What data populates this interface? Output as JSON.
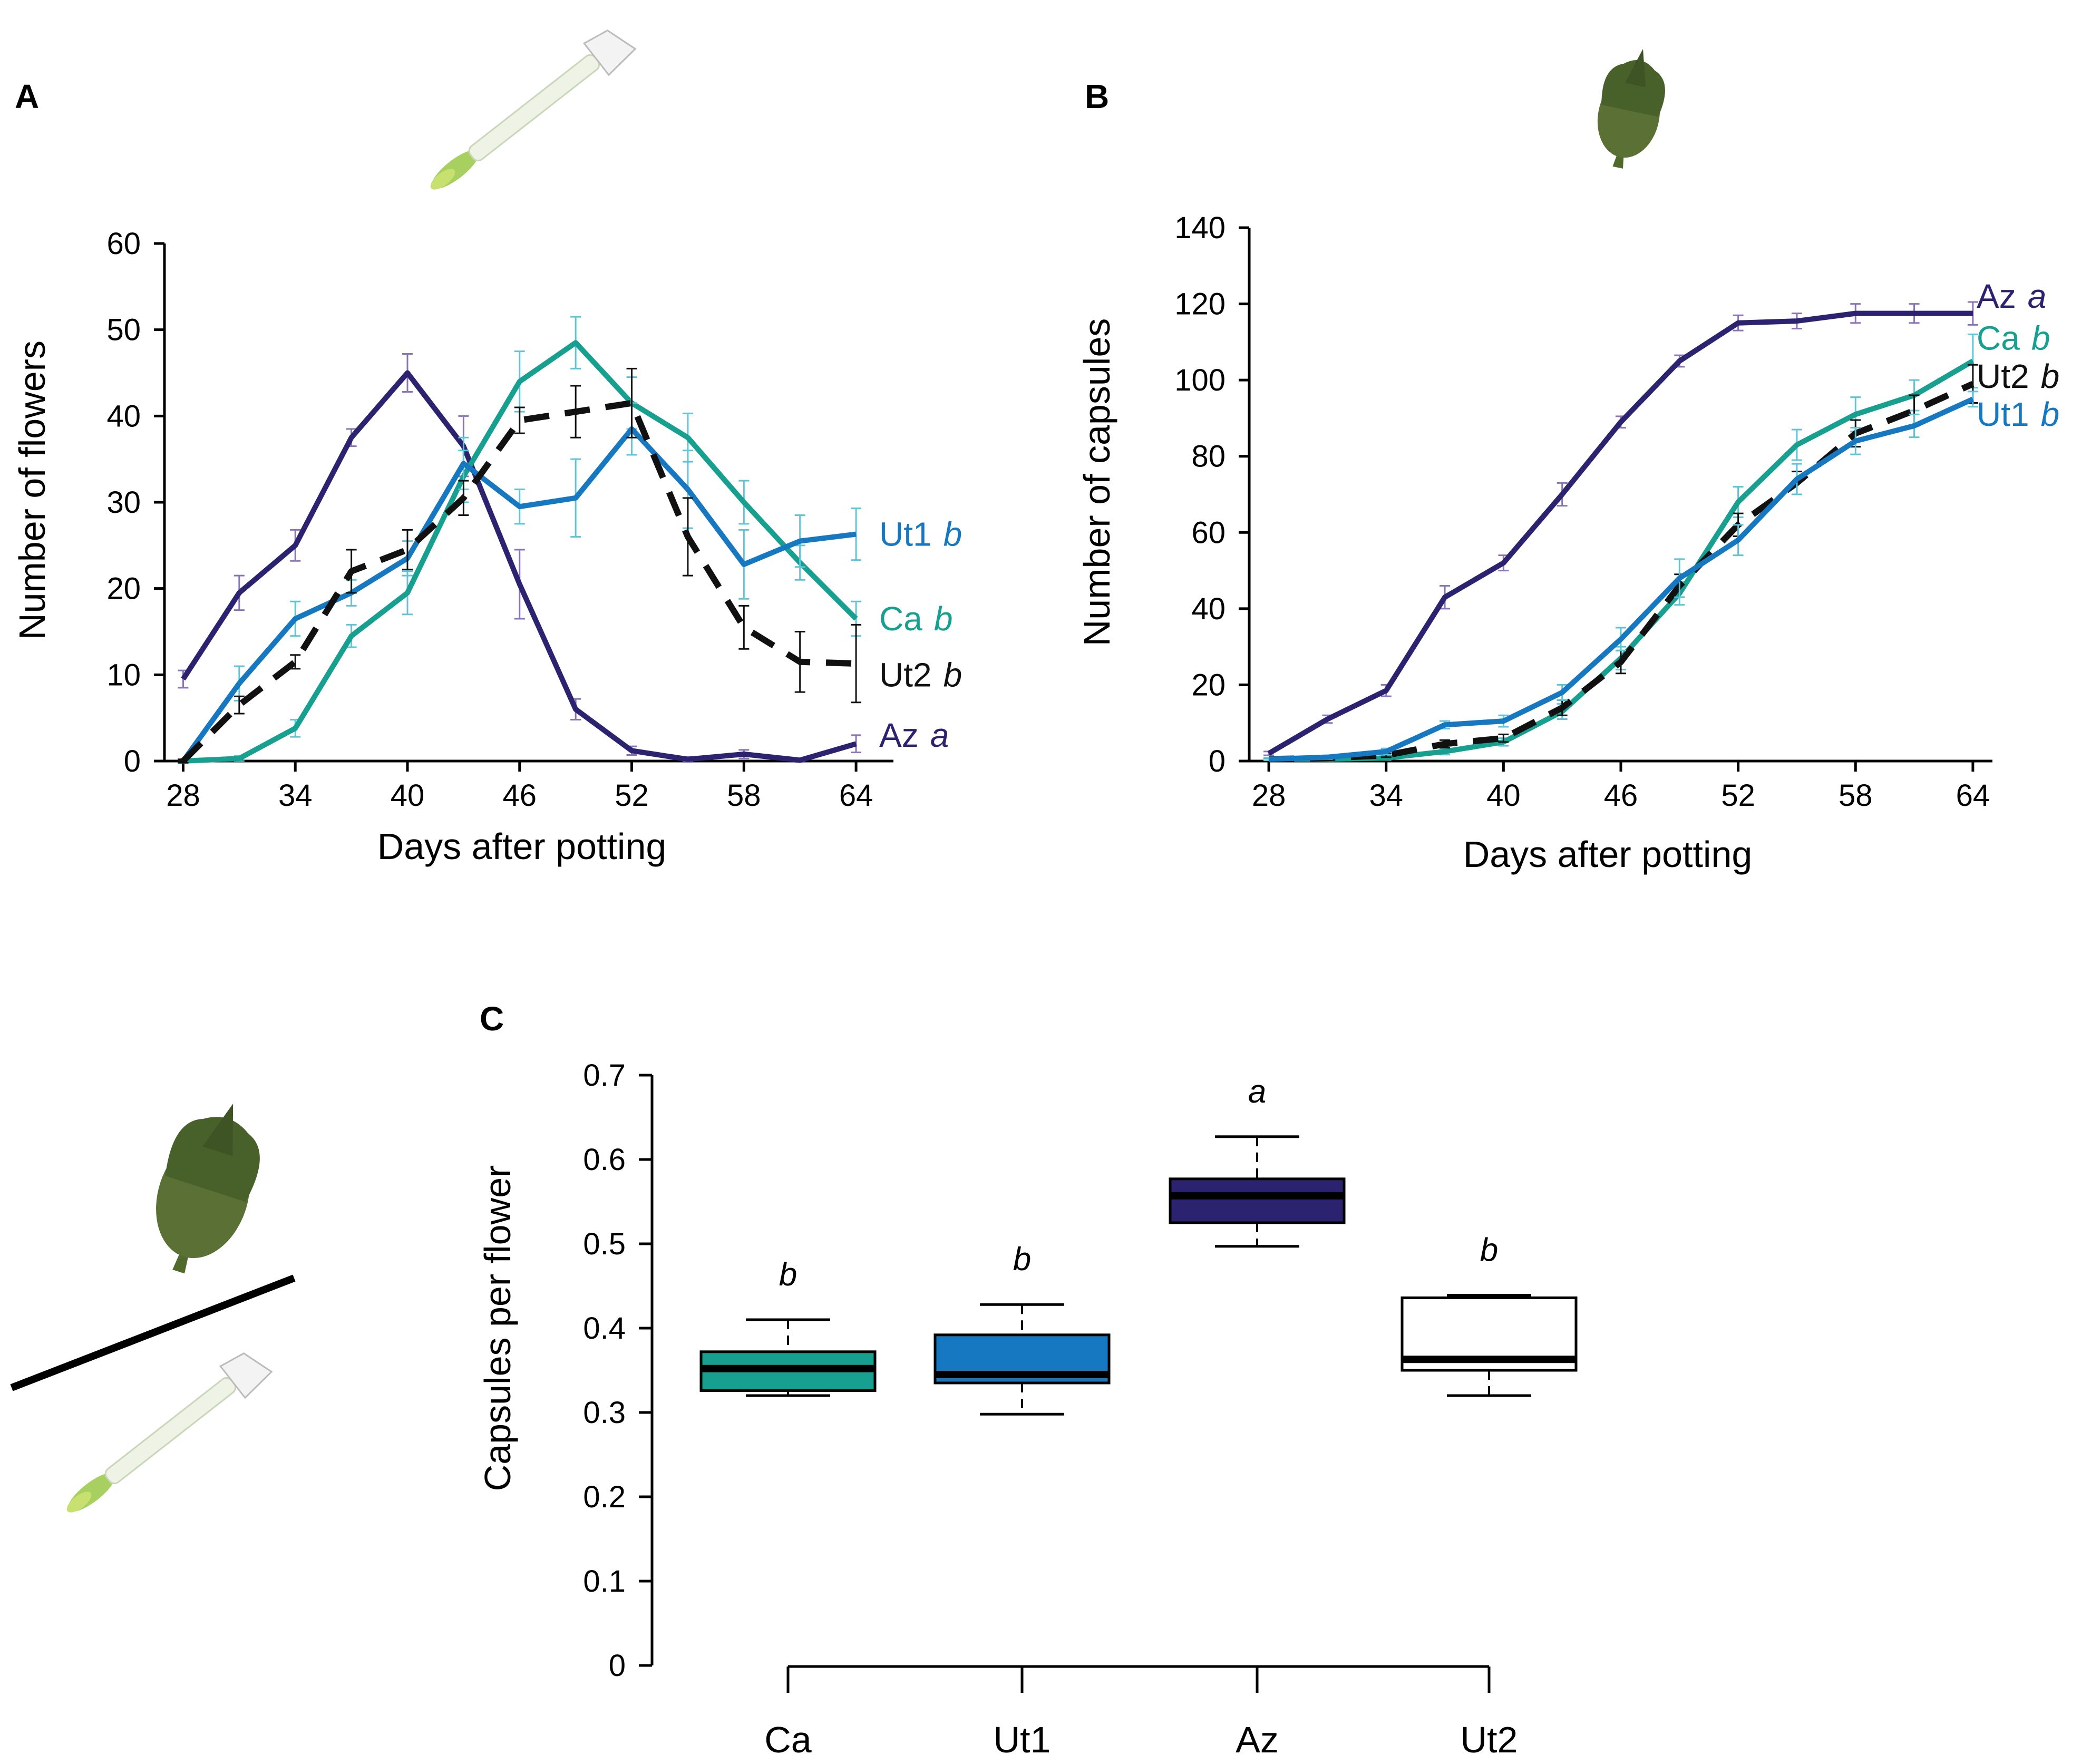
{
  "figure_title": "",
  "colors": {
    "Az": "#2b2270",
    "Ca": "#17a08f",
    "Ut1": "#1778c2",
    "Ut2": "#111111",
    "Az_err": "#8a73b8",
    "Ca_err": "#5cc5d8",
    "Ut1_err": "#5cc5d8",
    "Ut2_err": "#111111"
  },
  "chart_data": [
    {
      "panel": "A",
      "type": "line",
      "xlabel": "Days after potting",
      "ylabel": "Number of flowers",
      "xlim": [
        27,
        66
      ],
      "ylim": [
        0,
        60
      ],
      "xticks": [
        28,
        34,
        40,
        46,
        52,
        58,
        64
      ],
      "yticks": [
        0,
        10,
        20,
        30,
        40,
        50,
        60
      ],
      "icon": "flower-icon",
      "series": [
        {
          "name": "Az",
          "sig": "a",
          "style": "solid",
          "x": [
            28,
            31,
            34,
            37,
            40,
            43,
            46,
            49,
            52,
            55,
            58,
            61,
            64
          ],
          "y": [
            9.5,
            19.5,
            25,
            37.5,
            45,
            36.5,
            20.5,
            6,
            1.2,
            0.2,
            0.8,
            0.1,
            2
          ],
          "err": [
            1,
            2,
            1.8,
            1,
            2.2,
            3.5,
            4,
            1.2,
            0.5,
            0.3,
            0.5,
            0.2,
            1
          ]
        },
        {
          "name": "Ca",
          "sig": "b",
          "style": "solid",
          "x": [
            28,
            31,
            34,
            37,
            40,
            43,
            46,
            49,
            52,
            55,
            58,
            61,
            64
          ],
          "y": [
            0,
            0.3,
            3.8,
            14.5,
            19.5,
            33,
            44,
            48.5,
            41.5,
            37.5,
            30,
            23,
            16.5
          ],
          "err": [
            0.2,
            0.3,
            1,
            1.3,
            2.5,
            3,
            3.5,
            3,
            3,
            2.8,
            2.5,
            2,
            2
          ]
        },
        {
          "name": "Ut1",
          "sig": "b",
          "style": "solid",
          "x": [
            28,
            31,
            34,
            37,
            40,
            43,
            46,
            49,
            52,
            55,
            58,
            61,
            64
          ],
          "y": [
            0,
            9,
            16.5,
            19.5,
            23.5,
            34.5,
            29.5,
            30.5,
            38.5,
            31.5,
            22.8,
            25.5,
            26.3
          ],
          "err": [
            0.2,
            2,
            2,
            1.5,
            2,
            3,
            2,
            4.5,
            3,
            4.5,
            4,
            3,
            3
          ]
        },
        {
          "name": "Ut2",
          "sig": "b",
          "style": "dashed",
          "x": [
            28,
            31,
            34,
            37,
            40,
            43,
            46,
            49,
            52,
            55,
            58,
            61,
            64
          ],
          "y": [
            0,
            6.5,
            11.5,
            22,
            24.5,
            30.5,
            39.5,
            40.5,
            41.5,
            26,
            15.5,
            11.5,
            11.3
          ],
          "err": [
            0.2,
            1,
            0.8,
            2.5,
            2.3,
            2,
            1.5,
            3,
            4,
            4.5,
            2.5,
            3.5,
            4.5
          ]
        }
      ]
    },
    {
      "panel": "B",
      "type": "line",
      "xlabel": "Days after potting",
      "ylabel": "Number of capsules",
      "xlim": [
        27,
        65
      ],
      "ylim": [
        0,
        140
      ],
      "xticks": [
        28,
        34,
        40,
        46,
        52,
        58,
        64
      ],
      "yticks": [
        0,
        20,
        40,
        60,
        80,
        100,
        120,
        140
      ],
      "icon": "capsule-icon",
      "series": [
        {
          "name": "Az",
          "sig": "a",
          "style": "solid",
          "x": [
            28,
            31,
            34,
            37,
            40,
            43,
            46,
            49,
            52,
            55,
            58,
            61,
            64
          ],
          "y": [
            2,
            11,
            18.5,
            43,
            52,
            70,
            89,
            105,
            115,
            115.5,
            117.5,
            117.5,
            117.5
          ],
          "err": [
            0.5,
            1,
            1.5,
            3,
            2,
            3,
            1.5,
            1.5,
            2,
            2,
            2.5,
            2.5,
            3
          ]
        },
        {
          "name": "Ca",
          "sig": "b",
          "style": "solid",
          "x": [
            28,
            31,
            34,
            37,
            40,
            43,
            46,
            49,
            52,
            55,
            58,
            61,
            64
          ],
          "y": [
            0.5,
            0.5,
            0.8,
            2.5,
            5,
            13,
            27,
            44,
            68,
            83,
            91,
            96,
            105
          ],
          "err": [
            0.3,
            0.3,
            0.5,
            0.8,
            1,
            2,
            3,
            3,
            4,
            4,
            4.5,
            4,
            7
          ]
        },
        {
          "name": "Ut2",
          "sig": "b",
          "style": "dashed",
          "x": [
            28,
            31,
            34,
            37,
            40,
            43,
            46,
            49,
            52,
            55,
            58,
            61,
            64
          ],
          "y": [
            0.5,
            0.8,
            1.5,
            4.5,
            6,
            14,
            26,
            46,
            62,
            73,
            86,
            92,
            99
          ],
          "err": [
            0.3,
            0.3,
            0.5,
            1,
            1,
            2,
            3,
            3,
            3,
            3,
            3.5,
            4,
            5
          ]
        },
        {
          "name": "Ut1",
          "sig": "b",
          "style": "solid",
          "x": [
            28,
            31,
            34,
            37,
            40,
            43,
            46,
            49,
            52,
            55,
            58,
            61,
            64
          ],
          "y": [
            0.5,
            1,
            2.5,
            9.5,
            10.5,
            18,
            32,
            48,
            58,
            74,
            84,
            88,
            95
          ],
          "err": [
            0.3,
            0.5,
            0.8,
            1,
            1.5,
            2,
            3,
            5,
            4,
            4,
            3.5,
            3,
            2
          ]
        }
      ]
    },
    {
      "panel": "C",
      "type": "box",
      "ylabel": "Capsules per flower",
      "ylim": [
        0,
        0.7
      ],
      "yticks": [
        "0",
        "0.1",
        "0.2",
        "0.3",
        "0.4",
        "0.5",
        "0.6",
        "0.7"
      ],
      "categories": [
        "Ca",
        "Ut1",
        "Az",
        "Ut2"
      ],
      "boxes": [
        {
          "name": "Ca",
          "sig": "b",
          "min": 0.32,
          "q1": 0.326,
          "median": 0.352,
          "q3": 0.372,
          "max": 0.41,
          "fill": "#17a08f"
        },
        {
          "name": "Ut1",
          "sig": "b",
          "min": 0.298,
          "q1": 0.335,
          "median": 0.345,
          "q3": 0.392,
          "max": 0.428,
          "fill": "#1778c2"
        },
        {
          "name": "Az",
          "sig": "a",
          "min": 0.497,
          "q1": 0.525,
          "median": 0.557,
          "q3": 0.577,
          "max": 0.627,
          "fill": "#2b2270"
        },
        {
          "name": "Ut2",
          "sig": "b",
          "min": 0.32,
          "q1": 0.35,
          "median": 0.363,
          "q3": 0.436,
          "max": 0.439,
          "fill": "#ffffff"
        }
      ]
    }
  ]
}
